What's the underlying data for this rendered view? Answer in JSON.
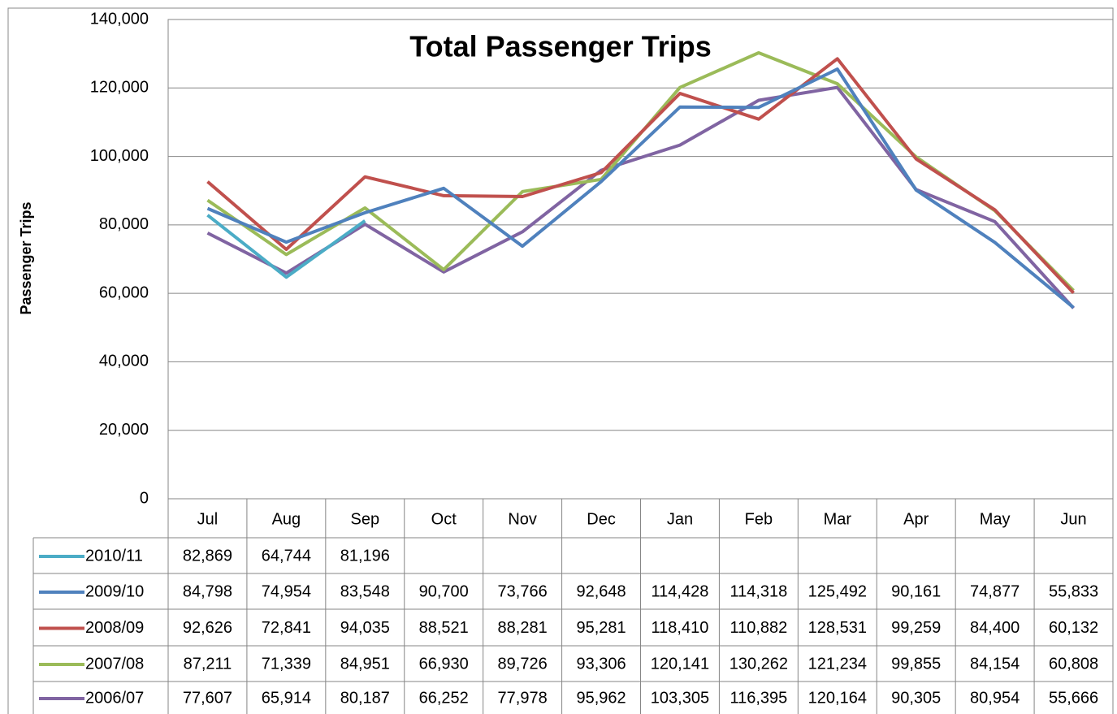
{
  "chart_data": {
    "type": "line",
    "title": "Total Passenger Trips",
    "y_label": "Passenger Trips",
    "categories": [
      "Jul",
      "Aug",
      "Sep",
      "Oct",
      "Nov",
      "Dec",
      "Jan",
      "Feb",
      "Mar",
      "Apr",
      "May",
      "Jun"
    ],
    "ylim": [
      0,
      140000
    ],
    "yticks": [
      0,
      {
        "value": 20000,
        "label": "20,000"
      },
      {
        "value": 40000,
        "label": "40,000"
      },
      {
        "value": 60000,
        "label": "60,000"
      },
      {
        "value": 80000,
        "label": "80,000"
      },
      {
        "value": 100000,
        "label": "100,000"
      },
      {
        "value": 120000,
        "label": "120,000"
      },
      {
        "value": 140000,
        "label": "140,000"
      }
    ],
    "grid": true,
    "series": [
      {
        "name": "2010/11",
        "color": "#4bacc6",
        "values": [
          82869,
          64744,
          81196,
          null,
          null,
          null,
          null,
          null,
          null,
          null,
          null,
          null
        ],
        "value_labels": [
          "82,869",
          "64,744",
          "81,196",
          null,
          null,
          null,
          null,
          null,
          null,
          null,
          null,
          null
        ]
      },
      {
        "name": "2009/10",
        "color": "#4f81bd",
        "values": [
          84798,
          74954,
          83548,
          90700,
          73766,
          92648,
          114428,
          114318,
          125492,
          90161,
          74877,
          55833
        ],
        "value_labels": [
          "84,798",
          "74,954",
          "83,548",
          "90,700",
          "73,766",
          "92,648",
          "114,428",
          "114,318",
          "125,492",
          "90,161",
          "74,877",
          "55,833"
        ]
      },
      {
        "name": "2008/09",
        "color": "#c0504d",
        "values": [
          92626,
          72841,
          94035,
          88521,
          88281,
          95281,
          118410,
          110882,
          128531,
          99259,
          84400,
          60132
        ],
        "value_labels": [
          "92,626",
          "72,841",
          "94,035",
          "88,521",
          "88,281",
          "95,281",
          "118,410",
          "110,882",
          "128,531",
          "99,259",
          "84,400",
          "60,132"
        ]
      },
      {
        "name": "2007/08",
        "color": "#9bbb59",
        "values": [
          87211,
          71339,
          84951,
          66930,
          89726,
          93306,
          120141,
          130262,
          121234,
          99855,
          84154,
          60808
        ],
        "value_labels": [
          "87,211",
          "71,339",
          "84,951",
          "66,930",
          "89,726",
          "93,306",
          "120,141",
          "130,262",
          "121,234",
          "99,855",
          "84,154",
          "60,808"
        ]
      },
      {
        "name": "2006/07",
        "color": "#8064a2",
        "values": [
          77607,
          65914,
          80187,
          66252,
          77978,
          95962,
          103305,
          116395,
          120164,
          90305,
          80954,
          55666
        ],
        "value_labels": [
          "77,607",
          "65,914",
          "80,187",
          "66,252",
          "77,978",
          "95,962",
          "103,305",
          "116,395",
          "120,164",
          "90,305",
          "80,954",
          "55,666"
        ]
      }
    ]
  }
}
